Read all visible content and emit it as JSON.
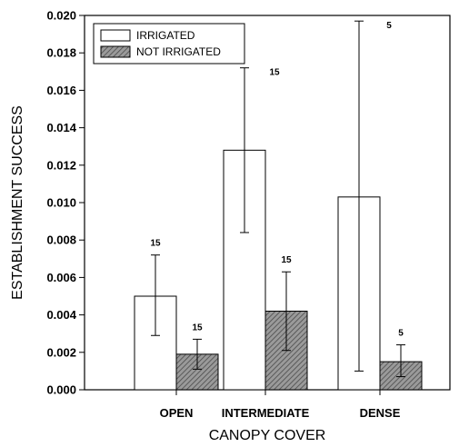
{
  "chart_data": {
    "type": "bar",
    "xlabel": "CANOPY COVER",
    "ylabel": "ESTABLISHMENT SUCCESS",
    "ylim": [
      0,
      0.02
    ],
    "yticks": [
      "0.000",
      "0.002",
      "0.004",
      "0.006",
      "0.008",
      "0.010",
      "0.012",
      "0.014",
      "0.016",
      "0.018",
      "0.020"
    ],
    "categories": [
      "OPEN",
      "INTERMEDIATE",
      "DENSE"
    ],
    "legend_position": "top-left",
    "series": [
      {
        "name": "IRRIGATED",
        "fill": "#ffffff",
        "pattern": "none",
        "values": [
          0.005,
          0.0128,
          0.0103
        ],
        "error_low": [
          0.0029,
          0.0084,
          0.001
        ],
        "error_high": [
          0.0072,
          0.0172,
          0.0197
        ],
        "n_labels": [
          "15",
          "15",
          "5"
        ]
      },
      {
        "name": "NOT IRRIGATED",
        "fill": "#8a8a8a",
        "pattern": "diagonal-hatch",
        "values": [
          0.0019,
          0.0042,
          0.0015
        ],
        "error_low": [
          0.0011,
          0.0021,
          0.0007
        ],
        "error_high": [
          0.0027,
          0.0063,
          0.0024
        ],
        "n_labels": [
          "15",
          "15",
          "5"
        ]
      }
    ]
  }
}
